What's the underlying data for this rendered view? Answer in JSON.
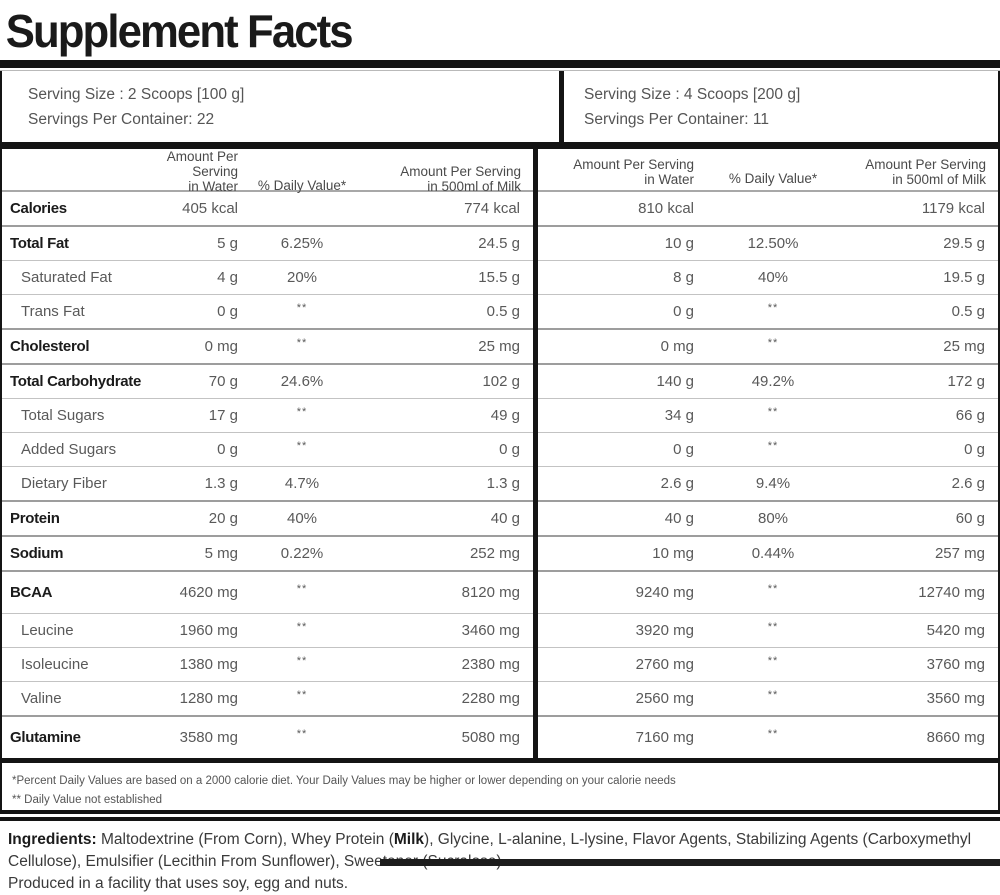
{
  "title": "Supplement Facts",
  "colors": {
    "rule": "#141414",
    "text_muted": "#595959",
    "text_strong": "#1b1b1b"
  },
  "panels": {
    "left": {
      "serving_size": "Serving Size : 2 Scoops [100 g]",
      "servings_per_container": "Servings Per Container: 22"
    },
    "right": {
      "serving_size": "Serving Size : 4 Scoops [200 g]",
      "servings_per_container": "Servings Per Container: 11"
    }
  },
  "table_headers": {
    "water_l1": "Amount Per Serving",
    "water_l2": "in Water",
    "dv": "% Daily Value*",
    "milk_l1": "Amount Per Serving",
    "milk_l2": "in 500ml of Milk"
  },
  "rows": [
    {
      "label": "Calories",
      "level": "main",
      "left": {
        "water": "405 kcal",
        "dv": "",
        "milk": "774 kcal"
      },
      "right": {
        "water": "810 kcal",
        "dv": "",
        "milk": "1179 kcal"
      }
    },
    {
      "label": "Total Fat",
      "level": "main",
      "left": {
        "water": "5 g",
        "dv": "6.25%",
        "milk": "24.5 g"
      },
      "right": {
        "water": "10 g",
        "dv": "12.50%",
        "milk": "29.5 g"
      }
    },
    {
      "label": "Saturated Fat",
      "level": "sub",
      "left": {
        "water": "4 g",
        "dv": "20%",
        "milk": "15.5 g"
      },
      "right": {
        "water": "8 g",
        "dv": "40%",
        "milk": "19.5 g"
      }
    },
    {
      "label": "Trans Fat",
      "level": "sub",
      "left": {
        "water": "0 g",
        "dv": "**",
        "milk": "0.5 g"
      },
      "right": {
        "water": "0 g",
        "dv": "**",
        "milk": "0.5 g"
      }
    },
    {
      "label": "Cholesterol",
      "level": "main",
      "left": {
        "water": "0 mg",
        "dv": "**",
        "milk": "25 mg"
      },
      "right": {
        "water": "0 mg",
        "dv": "**",
        "milk": "25 mg"
      }
    },
    {
      "label": "Total Carbohydrate",
      "level": "main",
      "left": {
        "water": "70 g",
        "dv": "24.6%",
        "milk": "102 g"
      },
      "right": {
        "water": "140 g",
        "dv": "49.2%",
        "milk": "172 g"
      }
    },
    {
      "label": "Total Sugars",
      "level": "sub",
      "left": {
        "water": "17 g",
        "dv": "**",
        "milk": "49 g"
      },
      "right": {
        "water": "34 g",
        "dv": "**",
        "milk": "66 g"
      }
    },
    {
      "label": "Added Sugars",
      "level": "sub",
      "left": {
        "water": "0 g",
        "dv": "**",
        "milk": "0 g"
      },
      "right": {
        "water": "0 g",
        "dv": "**",
        "milk": "0 g"
      }
    },
    {
      "label": "Dietary Fiber",
      "level": "sub",
      "left": {
        "water": "1.3 g",
        "dv": "4.7%",
        "milk": "1.3 g"
      },
      "right": {
        "water": "2.6 g",
        "dv": "9.4%",
        "milk": "2.6 g"
      }
    },
    {
      "label": "Protein",
      "level": "main",
      "left": {
        "water": "20 g",
        "dv": "40%",
        "milk": "40 g"
      },
      "right": {
        "water": "40 g",
        "dv": "80%",
        "milk": "60 g"
      }
    },
    {
      "label": "Sodium",
      "level": "main",
      "left": {
        "water": "5 mg",
        "dv": "0.22%",
        "milk": "252 mg"
      },
      "right": {
        "water": "10 mg",
        "dv": "0.44%",
        "milk": "257 mg"
      }
    },
    {
      "label": "BCAA",
      "level": "main",
      "left": {
        "water": "4620 mg",
        "dv": "**",
        "milk": "8120 mg"
      },
      "right": {
        "water": "9240 mg",
        "dv": "**",
        "milk": "12740 mg"
      }
    },
    {
      "label": "Leucine",
      "level": "sub",
      "left": {
        "water": "1960 mg",
        "dv": "**",
        "milk": "3460 mg"
      },
      "right": {
        "water": "3920 mg",
        "dv": "**",
        "milk": "5420 mg"
      }
    },
    {
      "label": "Isoleucine",
      "level": "sub",
      "left": {
        "water": "1380 mg",
        "dv": "**",
        "milk": "2380 mg"
      },
      "right": {
        "water": "2760 mg",
        "dv": "**",
        "milk": "3760 mg"
      }
    },
    {
      "label": "Valine",
      "level": "sub",
      "left": {
        "water": "1280 mg",
        "dv": "**",
        "milk": "2280 mg"
      },
      "right": {
        "water": "2560 mg",
        "dv": "**",
        "milk": "3560 mg"
      }
    },
    {
      "label": "Glutamine",
      "level": "main",
      "left": {
        "water": "3580 mg",
        "dv": "**",
        "milk": "5080 mg"
      },
      "right": {
        "water": "7160 mg",
        "dv": "**",
        "milk": "8660 mg"
      }
    }
  ],
  "footnotes": [
    "*Percent Daily Values are based on a 2000 calorie diet. Your Daily Values may be higher or lower depending on your calorie needs",
    "** Daily Value not established"
  ],
  "ingredients": {
    "label": "Ingredients:",
    "text_1": " Maltodextrine (From Corn), Whey Protein (",
    "milk": "Milk",
    "text_2": "), Glycine, L-alanine, L-lysine, Flavor Agents, Stabilizing Agents (Carboxymethyl Cellulose), Emulsifier (Lecithin From Sunflower), Sweetener (Sucralose).",
    "facility": "Produced in a facility that uses soy, egg and nuts."
  }
}
